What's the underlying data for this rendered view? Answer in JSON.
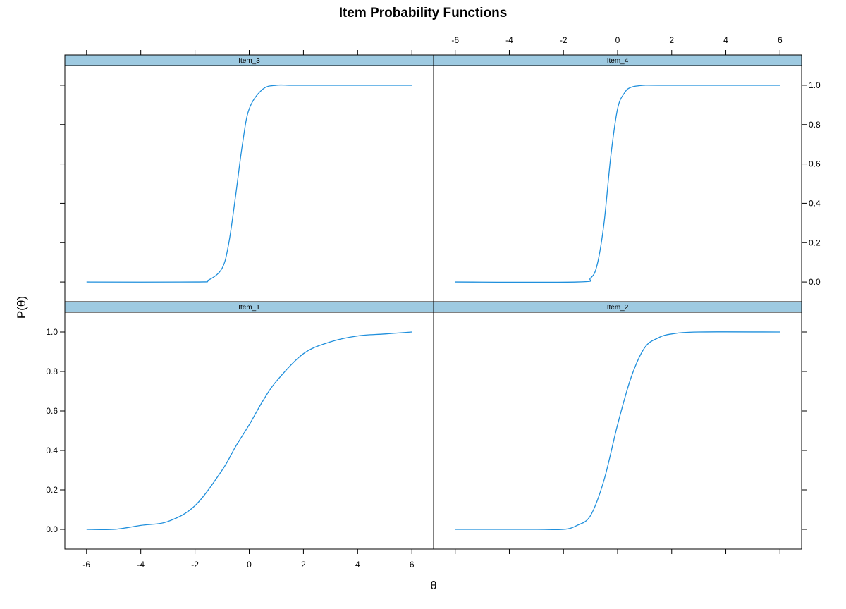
{
  "chart_data": {
    "type": "line",
    "title": "Item Probability Functions",
    "xlabel": "θ",
    "ylabel": "P(θ)",
    "xlim": [
      -6.8,
      6.8
    ],
    "ylim": [
      -0.1,
      1.1
    ],
    "x_ticks": [
      -6,
      -4,
      -2,
      0,
      2,
      4,
      6
    ],
    "y_ticks": [
      0.0,
      0.2,
      0.4,
      0.6,
      0.8,
      1.0
    ],
    "x_tick_labels": [
      "-6",
      "-4",
      "-2",
      "0",
      "2",
      "4",
      "6"
    ],
    "y_tick_labels": [
      "0.0",
      "0.2",
      "0.4",
      "0.6",
      "0.8",
      "1.0"
    ],
    "line_color": "#1f8fdc",
    "strip_color": "#9ecae1",
    "panels": [
      {
        "label": "Item_3",
        "row": "top",
        "col": "left",
        "series": {
          "x": [
            -6,
            -2,
            -1.5,
            -1,
            -0.75,
            -0.5,
            -0.25,
            0,
            0.5,
            1,
            1.5,
            2,
            6
          ],
          "y": [
            0.0,
            0.0,
            0.01,
            0.07,
            0.2,
            0.44,
            0.7,
            0.88,
            0.98,
            1.0,
            1.0,
            1.0,
            1.0
          ]
        }
      },
      {
        "label": "Item_4",
        "row": "top",
        "col": "right",
        "series": {
          "x": [
            -6,
            -1.5,
            -1,
            -0.75,
            -0.5,
            -0.25,
            0,
            0.25,
            0.5,
            1,
            1.5,
            6
          ],
          "y": [
            0.0,
            0.0,
            0.02,
            0.09,
            0.3,
            0.64,
            0.88,
            0.96,
            0.99,
            1.0,
            1.0,
            1.0
          ]
        }
      },
      {
        "label": "Item_1",
        "row": "bottom",
        "col": "left",
        "series": {
          "x": [
            -6,
            -5,
            -4,
            -3,
            -2,
            -1,
            -0.5,
            0,
            0.5,
            1,
            2,
            3,
            4,
            5,
            6
          ],
          "y": [
            0.0,
            0.0,
            0.02,
            0.04,
            0.12,
            0.3,
            0.42,
            0.53,
            0.65,
            0.75,
            0.89,
            0.95,
            0.98,
            0.99,
            1.0
          ]
        }
      },
      {
        "label": "Item_2",
        "row": "bottom",
        "col": "right",
        "series": {
          "x": [
            -6,
            -3,
            -2,
            -1.5,
            -1,
            -0.5,
            0,
            0.5,
            1,
            1.5,
            2,
            3,
            6
          ],
          "y": [
            0.0,
            0.0,
            0.0,
            0.02,
            0.07,
            0.25,
            0.53,
            0.77,
            0.92,
            0.97,
            0.99,
            1.0,
            1.0
          ]
        }
      }
    ]
  }
}
